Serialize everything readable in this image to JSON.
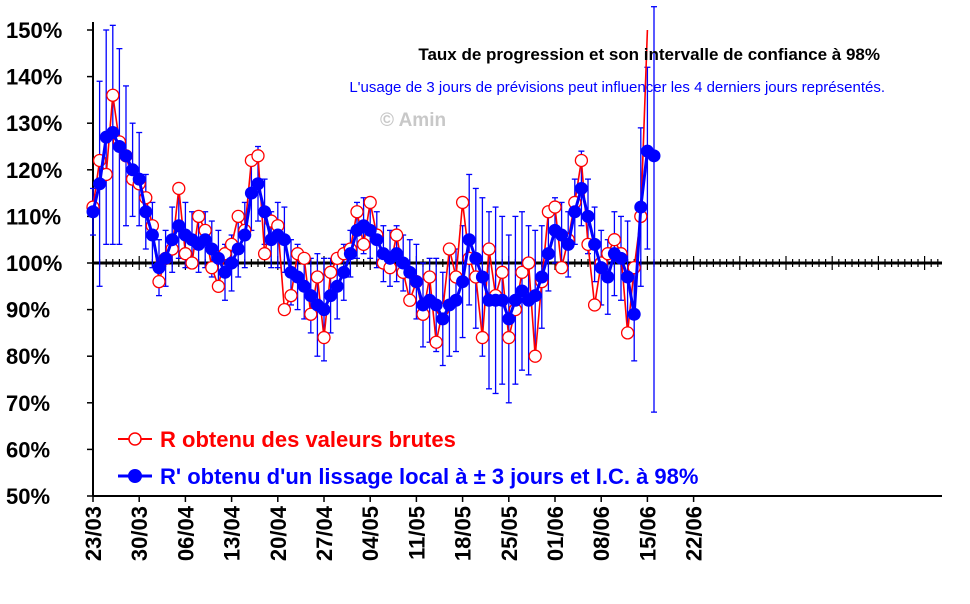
{
  "chart_data": {
    "type": "line",
    "title": "Taux de progression et son intervalle de confiance à 98%",
    "subtitle": "L'usage de 3 jours de prévisions peut influencer les 4 derniers jours représentés.",
    "watermark": "© Amin",
    "ylim": [
      50,
      150
    ],
    "y_ticks": [
      "150%",
      "140%",
      "130%",
      "120%",
      "110%",
      "100%",
      "90%",
      "80%",
      "70%",
      "60%",
      "50%"
    ],
    "x_ticks": [
      "23/03",
      "30/03",
      "06/04",
      "13/04",
      "20/04",
      "27/04",
      "04/05",
      "11/05",
      "18/05",
      "25/05",
      "01/06",
      "08/06",
      "15/06",
      "22/06"
    ],
    "x_start": "2020-03-23",
    "reference_line": 100,
    "colors": {
      "raw": "#ff0000",
      "smooth": "#0000ff",
      "reference": "#000000"
    },
    "series": [
      {
        "name": "R obtenu des valeurs brutes",
        "color": "#ff0000",
        "marker": "hollow-circle",
        "values": [
          112,
          122,
          119,
          136,
          126,
          123,
          118,
          117,
          114,
          108,
          96,
          101,
          103,
          116,
          102,
          100,
          110,
          107,
          99,
          95,
          102,
          104,
          110,
          107,
          122,
          123,
          102,
          109,
          108,
          90,
          93,
          102,
          101,
          89,
          97,
          84,
          98,
          101,
          102,
          103,
          111,
          104,
          113,
          106,
          100,
          99,
          106,
          98,
          92,
          96,
          89,
          97,
          83,
          90,
          103,
          97,
          113,
          101,
          97,
          84,
          103,
          93,
          98,
          84,
          90,
          98,
          100,
          80,
          96,
          111,
          112,
          99,
          105,
          113,
          122,
          104,
          91,
          100,
          102,
          105,
          102,
          85,
          99,
          110,
          150
        ]
      },
      {
        "name": "R' obtenu d'un lissage local à ± 3 jours et I.C. à 98%",
        "color": "#0000ff",
        "marker": "filled-circle",
        "values": [
          111,
          117,
          127,
          128,
          125,
          123,
          120,
          118,
          111,
          106,
          99,
          101,
          105,
          108,
          106,
          105,
          104,
          105,
          103,
          101,
          98,
          100,
          103,
          106,
          115,
          117,
          111,
          105,
          106,
          105,
          98,
          97,
          95,
          93,
          91,
          90,
          93,
          95,
          98,
          102,
          107,
          108,
          107,
          105,
          102,
          101,
          102,
          100,
          98,
          96,
          91,
          92,
          91,
          88,
          91,
          92,
          96,
          105,
          101,
          97,
          92,
          92,
          92,
          88,
          92,
          94,
          92,
          93,
          97,
          102,
          107,
          106,
          104,
          111,
          116,
          110,
          104,
          99,
          97,
          102,
          101,
          97,
          89,
          112,
          124,
          123
        ],
        "ci_low": [
          106,
          95,
          104,
          104,
          104,
          108,
          110,
          108,
          103,
          99,
          93,
          95,
          98,
          101,
          99,
          99,
          98,
          99,
          97,
          95,
          92,
          94,
          97,
          99,
          107,
          109,
          104,
          99,
          99,
          98,
          91,
          90,
          88,
          85,
          80,
          79,
          85,
          88,
          92,
          97,
          101,
          102,
          101,
          99,
          96,
          95,
          96,
          94,
          91,
          88,
          82,
          83,
          81,
          78,
          80,
          81,
          84,
          91,
          86,
          80,
          73,
          72,
          74,
          70,
          74,
          77,
          76,
          79,
          86,
          94,
          100,
          99,
          97,
          104,
          108,
          102,
          96,
          91,
          89,
          93,
          92,
          85,
          79,
          95,
          103,
          68
        ],
        "ci_high": [
          116,
          139,
          150,
          151,
          146,
          138,
          130,
          128,
          119,
          113,
          105,
          107,
          112,
          115,
          113,
          111,
          110,
          111,
          109,
          107,
          104,
          106,
          109,
          113,
          123,
          125,
          118,
          111,
          113,
          112,
          105,
          104,
          102,
          101,
          102,
          101,
          101,
          102,
          104,
          107,
          113,
          114,
          113,
          111,
          108,
          107,
          108,
          106,
          105,
          104,
          100,
          101,
          101,
          98,
          102,
          103,
          108,
          119,
          116,
          114,
          111,
          112,
          110,
          106,
          110,
          111,
          108,
          107,
          108,
          110,
          114,
          113,
          111,
          118,
          124,
          118,
          112,
          107,
          105,
          111,
          110,
          109,
          99,
          129,
          142,
          158
        ]
      }
    ],
    "legend": {
      "raw_label": "R obtenu des valeurs brutes",
      "smooth_label": "R' obtenu d'un lissage local à ± 3 jours et I.C. à 98%"
    }
  }
}
